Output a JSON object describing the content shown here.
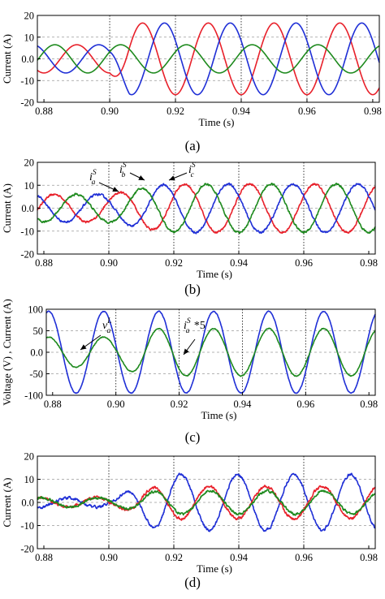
{
  "chart_data": [
    {
      "panel": "(a)",
      "type": "line",
      "xlabel": "Time (s)",
      "ylabel": "Current (A)",
      "xlim": [
        0.878,
        0.982
      ],
      "ylim": [
        -20,
        20
      ],
      "xticks": [
        "0.88",
        "0.90",
        "0.92",
        "0.94",
        "0.96",
        "0.98"
      ],
      "yticks": [
        "20",
        "10",
        "0.0",
        "-10",
        "-20"
      ],
      "grid": "dashed",
      "vlines": [
        0.9,
        0.92,
        0.94,
        0.96
      ],
      "series": [
        {
          "color": "#e8202a",
          "freq_hz": 50,
          "phase_deg": -90,
          "segments": [
            {
              "from": 0.878,
              "to": 0.9,
              "amp": 6.5
            },
            {
              "from": 0.9,
              "to": 0.906,
              "amp_from": 6.5,
              "amp_to": 16.5
            },
            {
              "from": 0.906,
              "to": 0.982,
              "amp": 16.5
            }
          ]
        },
        {
          "color": "#1f2fd6",
          "freq_hz": 50,
          "phase_deg": 150,
          "segments": [
            {
              "from": 0.878,
              "to": 0.9,
              "amp": 6.5
            },
            {
              "from": 0.9,
              "to": 0.906,
              "amp_from": 6.5,
              "amp_to": 16.5
            },
            {
              "from": 0.906,
              "to": 0.982,
              "amp": 16.5
            }
          ]
        },
        {
          "color": "#1e8a1e",
          "freq_hz": 50,
          "phase_deg": 30,
          "segments": [
            {
              "from": 0.878,
              "to": 0.9,
              "amp": 6.5
            },
            {
              "from": 0.9,
              "to": 0.906,
              "amp_from": 6.5,
              "amp_to": 6.5
            },
            {
              "from": 0.906,
              "to": 0.982,
              "amp": 6.5
            }
          ]
        }
      ]
    },
    {
      "panel": "(b)",
      "type": "line",
      "xlabel": "Time (s)",
      "ylabel": "Current (A)",
      "xlim": [
        0.878,
        0.982
      ],
      "ylim": [
        -20,
        20
      ],
      "xticks": [
        "0.88",
        "0.90",
        "0.92",
        "0.94",
        "0.96",
        "0.98"
      ],
      "yticks": [
        "20",
        "10",
        "0.0",
        "-10",
        "-20"
      ],
      "grid": "dashed",
      "vlines": [
        0.9,
        0.92,
        0.94,
        0.96
      ],
      "annotations": [
        {
          "base": "i",
          "sub": "a",
          "sup": "S"
        },
        {
          "base": "i",
          "sub": "b",
          "sup": "S"
        },
        {
          "base": "i",
          "sub": "c",
          "sup": "S"
        }
      ],
      "series": [
        {
          "color": "#e8202a",
          "freq_hz": 50,
          "phase_deg": 30,
          "segments": [
            {
              "from": 0.878,
              "to": 0.9,
              "amp": 6
            },
            {
              "from": 0.9,
              "to": 0.918,
              "amp_from": 6,
              "amp_to": 10.5
            },
            {
              "from": 0.918,
              "to": 0.982,
              "amp": 10.5
            }
          ],
          "noise": 0.8
        },
        {
          "color": "#1f2fd6",
          "freq_hz": 50,
          "phase_deg": 150,
          "segments": [
            {
              "from": 0.878,
              "to": 0.9,
              "amp": 6
            },
            {
              "from": 0.9,
              "to": 0.918,
              "amp_from": 6,
              "amp_to": 10.5
            },
            {
              "from": 0.918,
              "to": 0.982,
              "amp": 10.5
            }
          ],
          "noise": 0.8
        },
        {
          "color": "#1e8a1e",
          "freq_hz": 50,
          "phase_deg": -90,
          "segments": [
            {
              "from": 0.878,
              "to": 0.9,
              "amp": 6
            },
            {
              "from": 0.9,
              "to": 0.918,
              "amp_from": 6,
              "amp_to": 10.5
            },
            {
              "from": 0.918,
              "to": 0.982,
              "amp": 10.5
            }
          ],
          "noise": 0.8
        }
      ]
    },
    {
      "panel": "(c)",
      "type": "line",
      "xlabel": "Time (s)",
      "ylabel": "Voltage (V) , Current (A)",
      "xlim": [
        0.878,
        0.982
      ],
      "ylim": [
        -100,
        100
      ],
      "xticks": [
        "0.88",
        "0.90",
        "0.92",
        "0.94",
        "0.96",
        "0.98"
      ],
      "yticks": [
        "100",
        "50",
        "0.0",
        "-50",
        "-100"
      ],
      "grid": "dashed",
      "vlines": [
        0.9,
        0.92,
        0.94,
        0.96
      ],
      "annotations": [
        {
          "base": "v",
          "sub": "a",
          "sup": "L",
          "suffix": ""
        },
        {
          "base": "i",
          "sub": "a",
          "sup": "S",
          "suffix": " *5"
        }
      ],
      "series": [
        {
          "color": "#1f2fd6",
          "freq_hz": 57.5,
          "phase_deg": -100,
          "segments": [
            {
              "from": 0.878,
              "to": 0.982,
              "amp": 95
            }
          ],
          "noise": 1.5
        },
        {
          "color": "#1e8a1e",
          "freq_hz": 57.5,
          "phase_deg": -100,
          "segments": [
            {
              "from": 0.878,
              "to": 0.9,
              "amp": 35
            },
            {
              "from": 0.9,
              "to": 0.91,
              "amp_from": 35,
              "amp_to": 55
            },
            {
              "from": 0.91,
              "to": 0.982,
              "amp": 55
            }
          ],
          "noise": 1.8
        }
      ]
    },
    {
      "panel": "(d)",
      "type": "line",
      "xlabel": "Time (s)",
      "ylabel": "Current (A)",
      "xlim": [
        0.878,
        0.982
      ],
      "ylim": [
        -20,
        20
      ],
      "xticks": [
        "0.88",
        "0.90",
        "0.92",
        "0.94",
        "0.96",
        "0.98"
      ],
      "yticks": [
        "20",
        "10",
        "0.0",
        "-10",
        "-20"
      ],
      "grid": "dashed",
      "vlines": [
        0.9,
        0.92,
        0.94,
        0.96
      ],
      "series": [
        {
          "color": "#1f2fd6",
          "freq_hz": 57.5,
          "phase_deg": 80,
          "segments": [
            {
              "from": 0.878,
              "to": 0.902,
              "amp": 2
            },
            {
              "from": 0.902,
              "to": 0.915,
              "amp_from": 2,
              "amp_to": 12
            },
            {
              "from": 0.915,
              "to": 0.982,
              "amp": 12
            }
          ],
          "noise": 1.0
        },
        {
          "color": "#e8202a",
          "freq_hz": 57.5,
          "phase_deg": -100,
          "segments": [
            {
              "from": 0.878,
              "to": 0.902,
              "amp": 2
            },
            {
              "from": 0.902,
              "to": 0.915,
              "amp_from": 2,
              "amp_to": 7
            },
            {
              "from": 0.915,
              "to": 0.982,
              "amp": 7
            }
          ],
          "noise": 1.0
        },
        {
          "color": "#1e8a1e",
          "freq_hz": 57.5,
          "phase_deg": -110,
          "segments": [
            {
              "from": 0.878,
              "to": 0.902,
              "amp": 2
            },
            {
              "from": 0.902,
              "to": 0.915,
              "amp_from": 2,
              "amp_to": 5
            },
            {
              "from": 0.915,
              "to": 0.982,
              "amp": 5
            }
          ],
          "noise": 0.9
        }
      ]
    }
  ]
}
